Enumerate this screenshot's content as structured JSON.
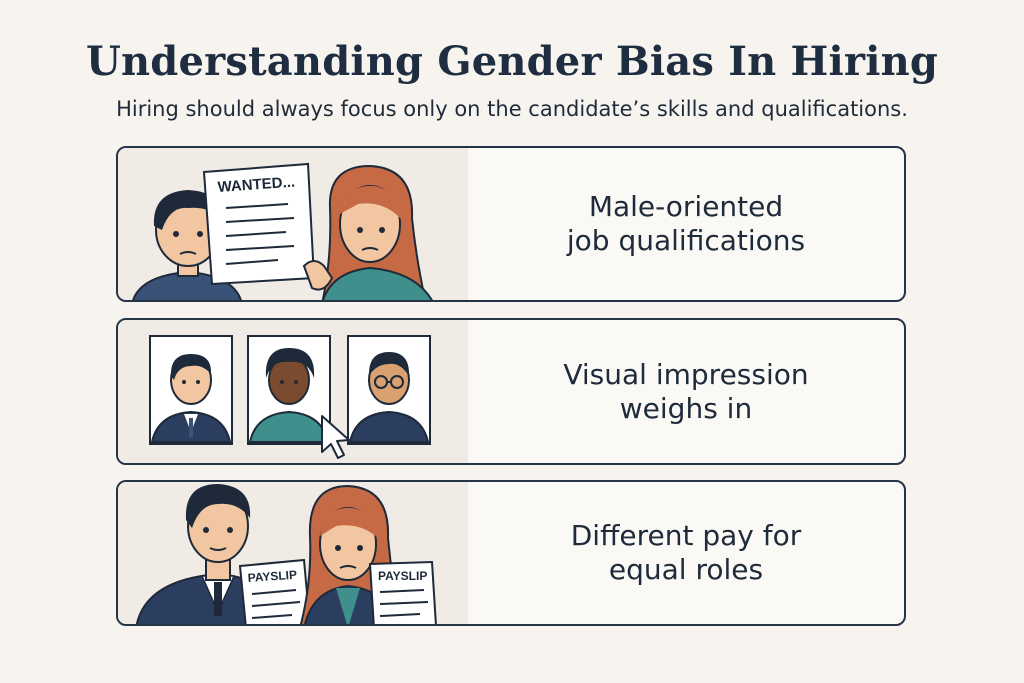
{
  "header": {
    "title": "Understanding Gender Bias In Hiring",
    "subtitle": "Hiring should always focus only on the candidate’s skills and qualifications."
  },
  "cards": [
    {
      "line1": "Male-oriented",
      "line2": "job qualifications",
      "sign_text": "WANTED...",
      "icons": [
        "man-icon",
        "woman-icon",
        "job-posting-icon"
      ]
    },
    {
      "line1": "Visual impression",
      "line2": "weighs in",
      "icons": [
        "candidate-photo-icon",
        "mouse-cursor-icon"
      ]
    },
    {
      "line1": "Different pay for",
      "line2": "equal roles",
      "slip_text": "PAYSLIP",
      "icons": [
        "businessman-icon",
        "woman-icon",
        "payslip-icon"
      ]
    }
  ],
  "colors": {
    "background": "#f7f3ee",
    "card_border": "#253446",
    "skin": "#f2c6a0",
    "dark_skin": "#7a4b2e",
    "hair_dark": "#1e2a3a",
    "hair_red": "#c66a45",
    "suit": "#2c3e5f",
    "teal": "#3f8f8c"
  }
}
